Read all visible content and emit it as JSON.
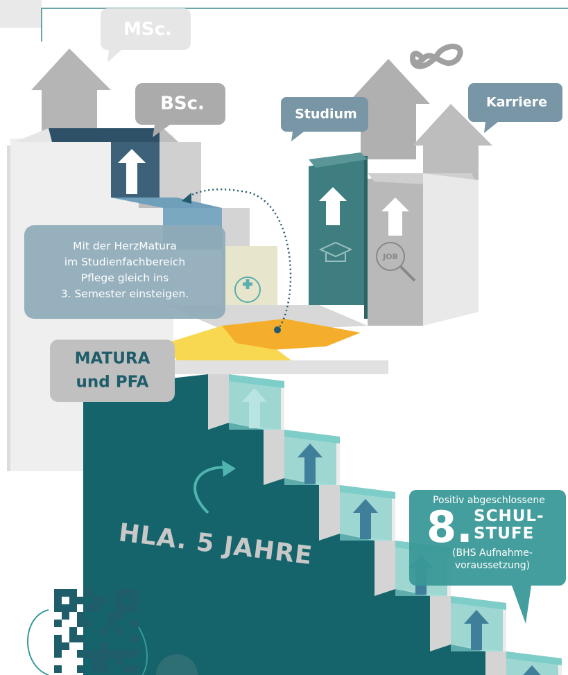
{
  "bubbles": {
    "msc": "MSc.",
    "bsc": "BSc.",
    "studium": "Studium",
    "karriere": "Karriere",
    "matura": [
      "MATURA",
      "und PFA"
    ]
  },
  "info": {
    "lines": [
      "Mit der HerzMatura",
      "im Studienfachbereich",
      "Pflege gleich ins",
      "3. Semester einsteigen."
    ]
  },
  "hla": "HLA. 5 JAHRE",
  "entry": {
    "intro": "Positiv abgeschlossene",
    "number": "8.",
    "title": [
      "SCHUL-",
      "STUFE"
    ],
    "note": [
      "(BHS Aufnahme-",
      "voraussetzung)"
    ]
  },
  "icons": {
    "job": "JOB"
  }
}
